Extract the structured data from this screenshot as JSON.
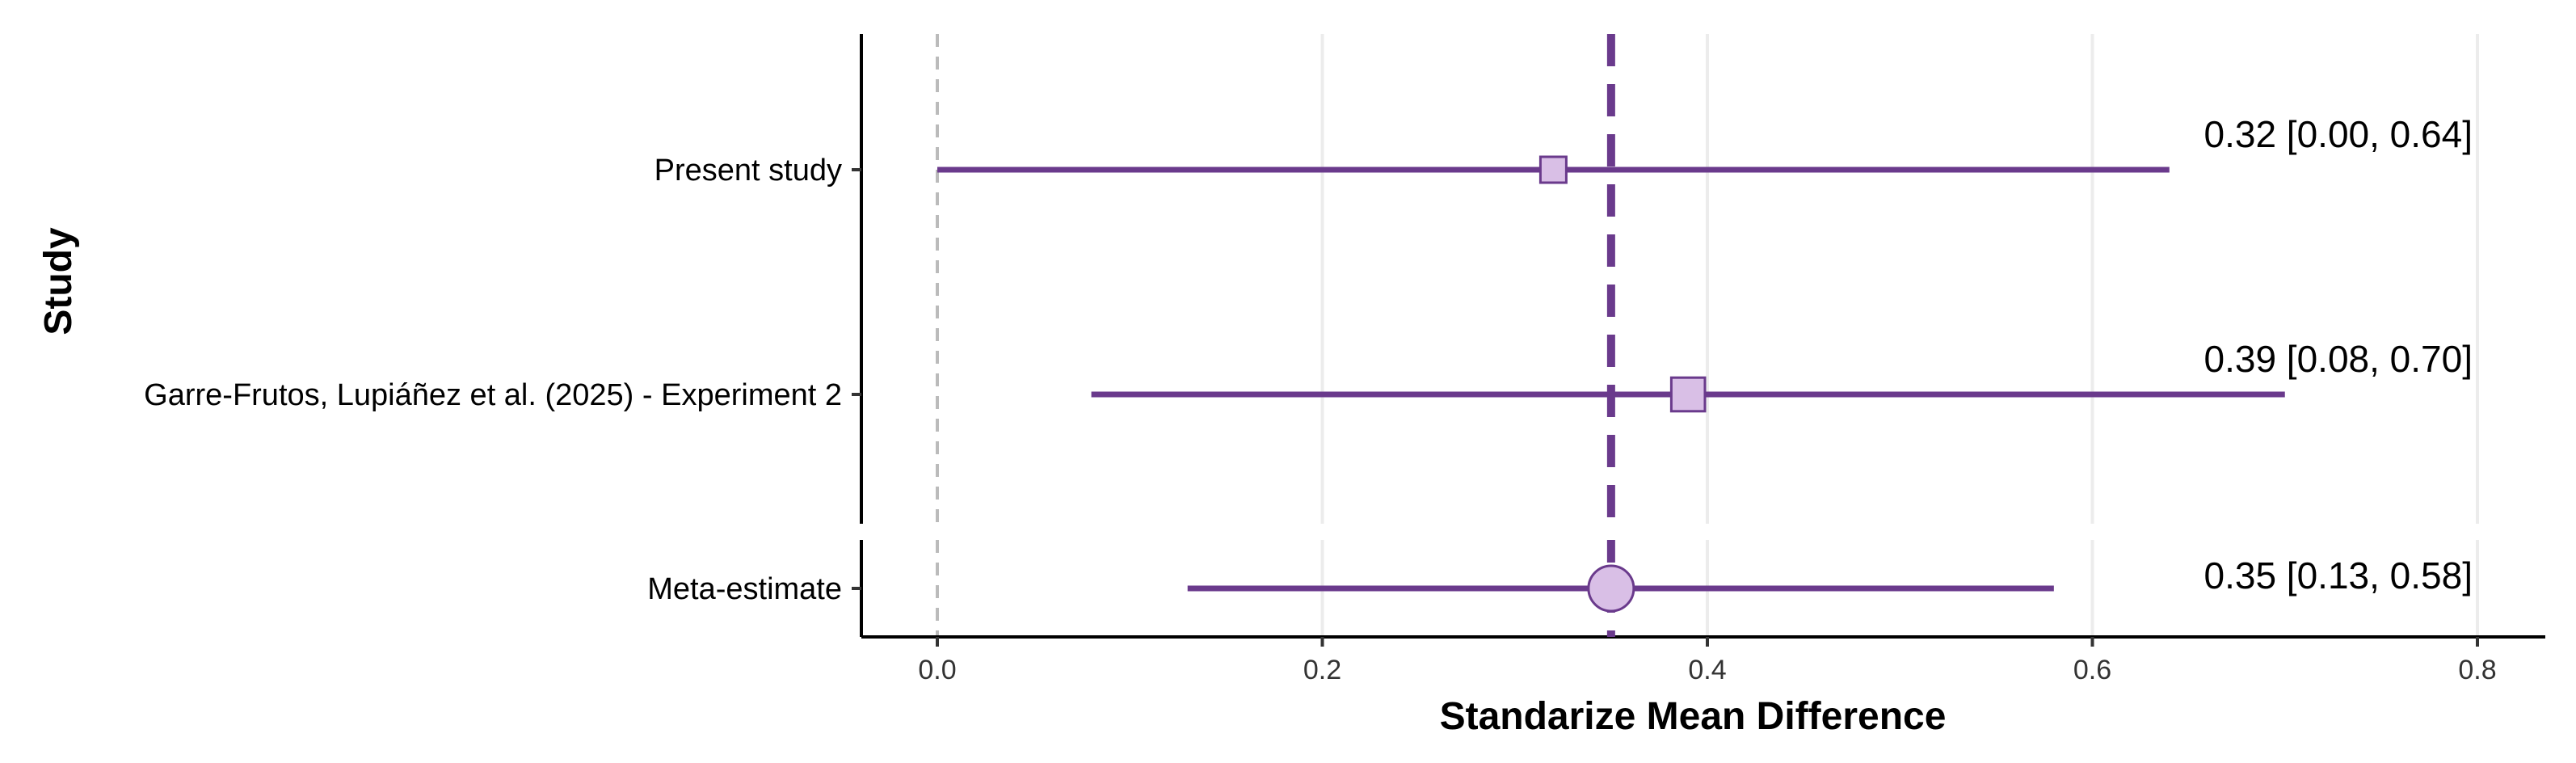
{
  "chart_data": {
    "type": "forest",
    "xlabel": "Standarize Mean Difference",
    "ylabel": "Study",
    "xlim": [
      -0.02,
      0.84
    ],
    "xticks": [
      0.0,
      0.2,
      0.4,
      0.6,
      0.8
    ],
    "xtick_labels": [
      "0.0",
      "0.2",
      "0.4",
      "0.6",
      "0.8"
    ],
    "reference_line": 0.0,
    "pooled_line": 0.35,
    "grid": "vertical major",
    "colors": {
      "estimate": "#6a3a8c",
      "fill": "#d9bfe6",
      "reference": "#bbbbbb",
      "grid": "#ececec"
    },
    "studies": [
      {
        "name": "Present study",
        "estimate": 0.32,
        "lower": 0.0,
        "upper": 0.64,
        "shape": "square",
        "size": 1.0,
        "ci_label": "0.32 [0.00, 0.64]"
      },
      {
        "name": "Garre-Frutos, Lupiáñez et al. (2025) - Experiment 2",
        "estimate": 0.39,
        "lower": 0.08,
        "upper": 0.7,
        "shape": "square",
        "size": 1.3,
        "ci_label": "0.39 [0.08, 0.70]"
      }
    ],
    "meta": {
      "name": "Meta-estimate",
      "estimate": 0.35,
      "lower": 0.13,
      "upper": 0.58,
      "shape": "circle",
      "ci_label": "0.35 [0.13, 0.58]"
    }
  }
}
